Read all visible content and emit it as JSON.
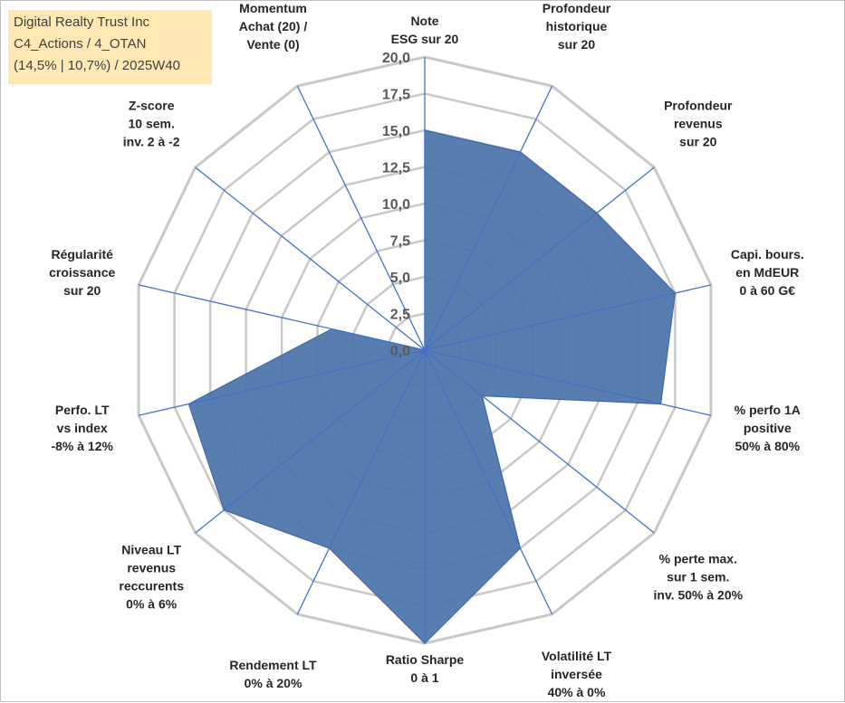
{
  "chart_data": {
    "type": "radar",
    "title_lines": [
      "Digital Realty Trust Inc",
      "C4_Actions / 4_OTAN",
      "(14,5% | 10,7%) / 2025W40"
    ],
    "scale": {
      "min": 0,
      "max": 20,
      "step": 2.5
    },
    "tick_labels": [
      "0,0",
      "2,5",
      "5,0",
      "7,5",
      "10,0",
      "12,5",
      "15,0",
      "17,5",
      "20,0"
    ],
    "axes": [
      {
        "label_lines": [
          "Note",
          "ESG sur 20"
        ],
        "value": 15
      },
      {
        "label_lines": [
          "Profondeur",
          "historique",
          "sur 20"
        ],
        "value": 15
      },
      {
        "label_lines": [
          "Profondeur",
          "revenus",
          "sur 20"
        ],
        "value": 15
      },
      {
        "label_lines": [
          "Capi. bours.",
          "en MdEUR",
          "0 à 60 G€"
        ],
        "value": 17.5
      },
      {
        "label_lines": [
          "% perfo 1A",
          "positive",
          "50% à 80%"
        ],
        "value": 16.5
      },
      {
        "label_lines": [
          "% perte max.",
          "sur 1 sem.",
          "inv. 50% à 20%"
        ],
        "value": 5
      },
      {
        "label_lines": [
          "Volatilité LT",
          "inversée",
          "40% à 0%"
        ],
        "value": 15
      },
      {
        "label_lines": [
          "Ratio Sharpe",
          "0 à 1"
        ],
        "value": 20
      },
      {
        "label_lines": [
          "Rendement LT",
          "0% à 20%"
        ],
        "value": 15
      },
      {
        "label_lines": [
          "Niveau LT",
          "revenus",
          "reccurents",
          "0% à 6%"
        ],
        "value": 17.5
      },
      {
        "label_lines": [
          "Perfo. LT",
          "vs index",
          "-8% à 12%"
        ],
        "value": 16.5
      },
      {
        "label_lines": [
          "Régularité",
          "croissance",
          "sur 20"
        ],
        "value": 6.5
      },
      {
        "label_lines": [
          "Z-score",
          "10 sem.",
          "inv. 2 à -2"
        ],
        "value": 0
      },
      {
        "label_lines": [
          "Momentum",
          "Achat (20) /",
          "Vente (0)"
        ],
        "value": 0
      }
    ],
    "series": [
      {
        "name": "Digital Realty Trust Inc",
        "color": "#4f77ad"
      }
    ],
    "grid_color": "#c8c8c8",
    "spoke_color": "#4472c4"
  }
}
